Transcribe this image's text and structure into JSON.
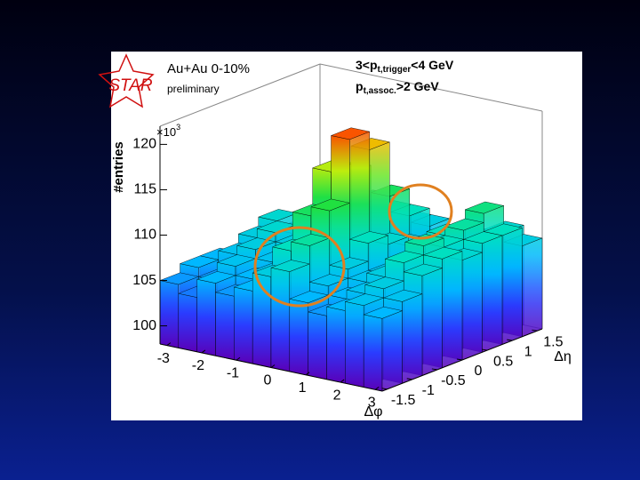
{
  "chart_data": {
    "type": "lego",
    "logo": "STAR",
    "title": "Au+Au 0-10%",
    "subtitle": "preliminary",
    "annotations": [
      {
        "text": "3<p",
        "sub": "t,trigger",
        "tail": "<4 GeV"
      },
      {
        "text": "p",
        "sub": "t,assoc.",
        "tail": ">2 GeV"
      }
    ],
    "zlabel": "#entries",
    "zmultiplier": {
      "base": "×10",
      "exp": "3"
    },
    "xlabel": "Δφ",
    "ylabel": "Δη",
    "xlim": [
      -3.2,
      3.2
    ],
    "xticks": [
      -3,
      -2,
      -1,
      0,
      1,
      2,
      3
    ],
    "ylim": [
      -1.6,
      1.6
    ],
    "yticks": [
      -1.5,
      -1,
      -0.5,
      0,
      0.5,
      1,
      1.5
    ],
    "zlim": [
      98,
      122
    ],
    "zticks": [
      100,
      105,
      110,
      115,
      120
    ],
    "colormap": [
      "#5a00b8",
      "#2a3cff",
      "#00b8ff",
      "#00e0c0",
      "#20e040",
      "#e8f000",
      "#ff2000"
    ],
    "values": [
      [
        105,
        104,
        106,
        105,
        106,
        108,
        109,
        106,
        105,
        106,
        107,
        106
      ],
      [
        106,
        105,
        107,
        106,
        107,
        110,
        111,
        107,
        106,
        107,
        108,
        107
      ],
      [
        106,
        107,
        108,
        107,
        108,
        113,
        114,
        108,
        107,
        108,
        110,
        109
      ],
      [
        105,
        108,
        109,
        108,
        109,
        117,
        121,
        110,
        107,
        108,
        111,
        110
      ],
      [
        106,
        109,
        108,
        107,
        109,
        116,
        119,
        109,
        106,
        109,
        110,
        109
      ],
      [
        105,
        107,
        108,
        106,
        108,
        112,
        113,
        108,
        106,
        110,
        111,
        110
      ],
      [
        104,
        106,
        107,
        105,
        107,
        110,
        110,
        107,
        105,
        109,
        112,
        110
      ],
      [
        103,
        105,
        106,
        104,
        106,
        108,
        108,
        106,
        104,
        107,
        109,
        108
      ]
    ]
  }
}
